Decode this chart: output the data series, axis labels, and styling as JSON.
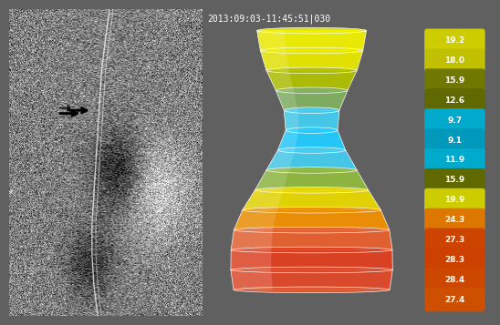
{
  "timestamp": "2013:09:03-11:45:51|030",
  "bg_color_left": "#808080",
  "bg_color_right": "#606060",
  "measurements": [
    19.2,
    18.0,
    15.9,
    12.6,
    9.7,
    9.1,
    11.9,
    15.9,
    19.9,
    24.3,
    27.3,
    28.3,
    28.4,
    27.4
  ],
  "measure_colors": [
    "#d4d000",
    "#c8c800",
    "#8b9400",
    "#7a8a00",
    "#00aadd",
    "#00aaee",
    "#00bbee",
    "#8b9400",
    "#d4d000",
    "#e87000",
    "#d45500",
    "#cc4400",
    "#cc4800",
    "#d05000"
  ],
  "measure_bg_colors": [
    "#cccc00",
    "#c8c800",
    "#808000",
    "#7a8a00",
    "#00aadd",
    "#00aacc",
    "#00aacc",
    "#808000",
    "#cccc00",
    "#dd7700",
    "#cc4400",
    "#cc4400",
    "#cc4800",
    "#cc5500"
  ],
  "shape_diameters": [
    19.2,
    18.0,
    15.9,
    12.6,
    9.7,
    9.1,
    11.9,
    15.9,
    19.9,
    24.3,
    27.3,
    28.3,
    28.4,
    27.4
  ],
  "shape_colors": [
    "#e8e800",
    "#d4d400",
    "#a8b800",
    "#70b870",
    "#44ccdd",
    "#22ccee",
    "#44ccdd",
    "#70b870",
    "#a8c840",
    "#e8b800",
    "#f07800",
    "#e85000",
    "#e04800",
    "#e85000"
  ]
}
